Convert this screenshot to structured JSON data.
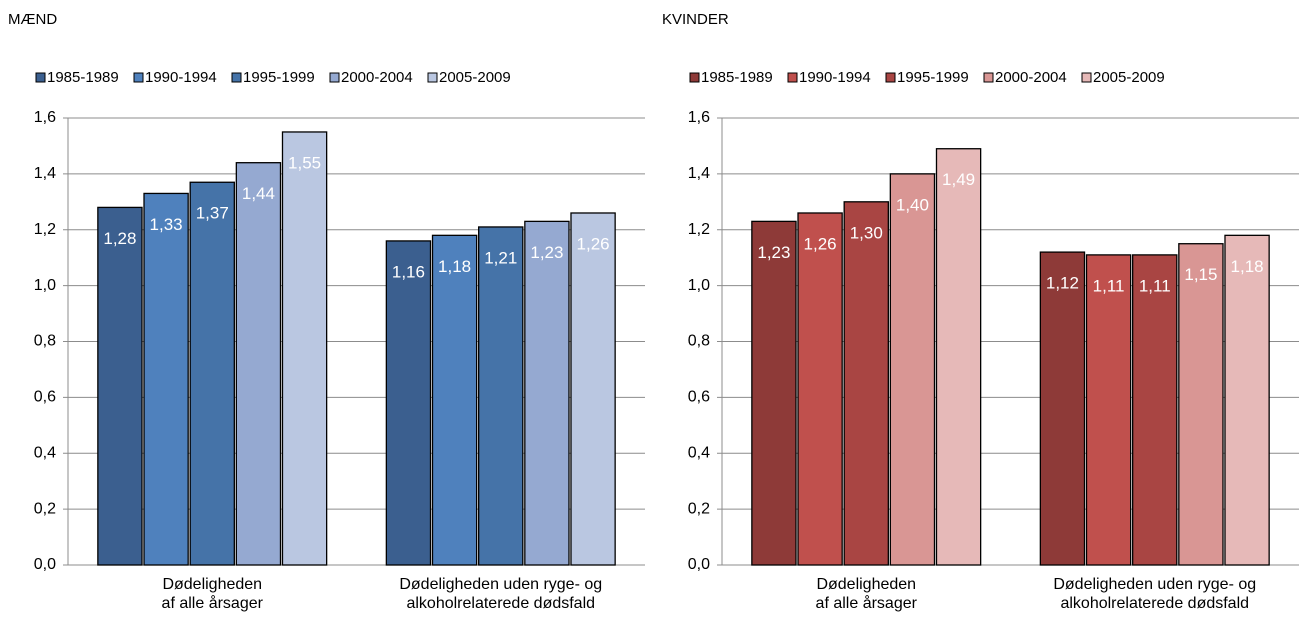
{
  "chart_data": [
    {
      "type": "bar",
      "title": "MÆND",
      "legend": "top",
      "grid": true,
      "categories": [
        "Dødeligheden\naf alle årsager",
        "Dødeligheden uden ryge- og\nalkoholrelaterede dødsfald"
      ],
      "series": [
        {
          "name": "1985-1989",
          "color": "#3b5f8f",
          "values": [
            1.28,
            1.16
          ],
          "value_labels": [
            "1,28",
            "1,16"
          ]
        },
        {
          "name": "1990-1994",
          "color": "#4f81bd",
          "values": [
            1.33,
            1.18
          ],
          "value_labels": [
            "1,33",
            "1,18"
          ]
        },
        {
          "name": "1995-1999",
          "color": "#4573a8",
          "values": [
            1.37,
            1.21
          ],
          "value_labels": [
            "1,37",
            "1,21"
          ]
        },
        {
          "name": "2000-2004",
          "color": "#95a9d1",
          "values": [
            1.44,
            1.23
          ],
          "value_labels": [
            "1,44",
            "1,23"
          ]
        },
        {
          "name": "2005-2009",
          "color": "#bac7e1",
          "values": [
            1.55,
            1.26
          ],
          "value_labels": [
            "1,55",
            "1,26"
          ]
        }
      ],
      "ylim": [
        0,
        1.6
      ],
      "yticks": [
        {
          "value": 0,
          "label": "0,0"
        },
        {
          "value": 0.2,
          "label": "0,2"
        },
        {
          "value": 0.4,
          "label": "0,4"
        },
        {
          "value": 0.6,
          "label": "0,6"
        },
        {
          "value": 0.8,
          "label": "0,8"
        },
        {
          "value": 1,
          "label": "1,0"
        },
        {
          "value": 1.2,
          "label": "1,2"
        },
        {
          "value": 1.4,
          "label": "1,4"
        },
        {
          "value": 1.6,
          "label": "1,6"
        }
      ]
    },
    {
      "type": "bar",
      "title": "KVINDER",
      "legend": "top",
      "grid": true,
      "categories": [
        "Dødeligheden\naf alle årsager",
        "Dødeligheden uden ryge- og\nalkoholrelaterede dødsfald"
      ],
      "series": [
        {
          "name": "1985-1989",
          "color": "#8e3a38",
          "values": [
            1.23,
            1.12
          ],
          "value_labels": [
            "1,23",
            "1,12"
          ]
        },
        {
          "name": "1990-1994",
          "color": "#c0504d",
          "values": [
            1.26,
            1.11
          ],
          "value_labels": [
            "1,26",
            "1,11"
          ]
        },
        {
          "name": "1995-1999",
          "color": "#a94543",
          "values": [
            1.3,
            1.11
          ],
          "value_labels": [
            "1,30",
            "1,11"
          ]
        },
        {
          "name": "2000-2004",
          "color": "#d99694",
          "values": [
            1.4,
            1.15
          ],
          "value_labels": [
            "1,40",
            "1,15"
          ]
        },
        {
          "name": "2005-2009",
          "color": "#e6b9b8",
          "values": [
            1.49,
            1.18
          ],
          "value_labels": [
            "1,49",
            "1,18"
          ]
        }
      ],
      "ylim": [
        0,
        1.6
      ],
      "yticks": [
        {
          "value": 0,
          "label": "0,0"
        },
        {
          "value": 0.2,
          "label": "0,2"
        },
        {
          "value": 0.4,
          "label": "0,4"
        },
        {
          "value": 0.6,
          "label": "0,6"
        },
        {
          "value": 0.8,
          "label": "0,8"
        },
        {
          "value": 1,
          "label": "1,0"
        },
        {
          "value": 1.2,
          "label": "1,2"
        },
        {
          "value": 1.4,
          "label": "1,4"
        },
        {
          "value": 1.6,
          "label": "1,6"
        }
      ]
    }
  ]
}
